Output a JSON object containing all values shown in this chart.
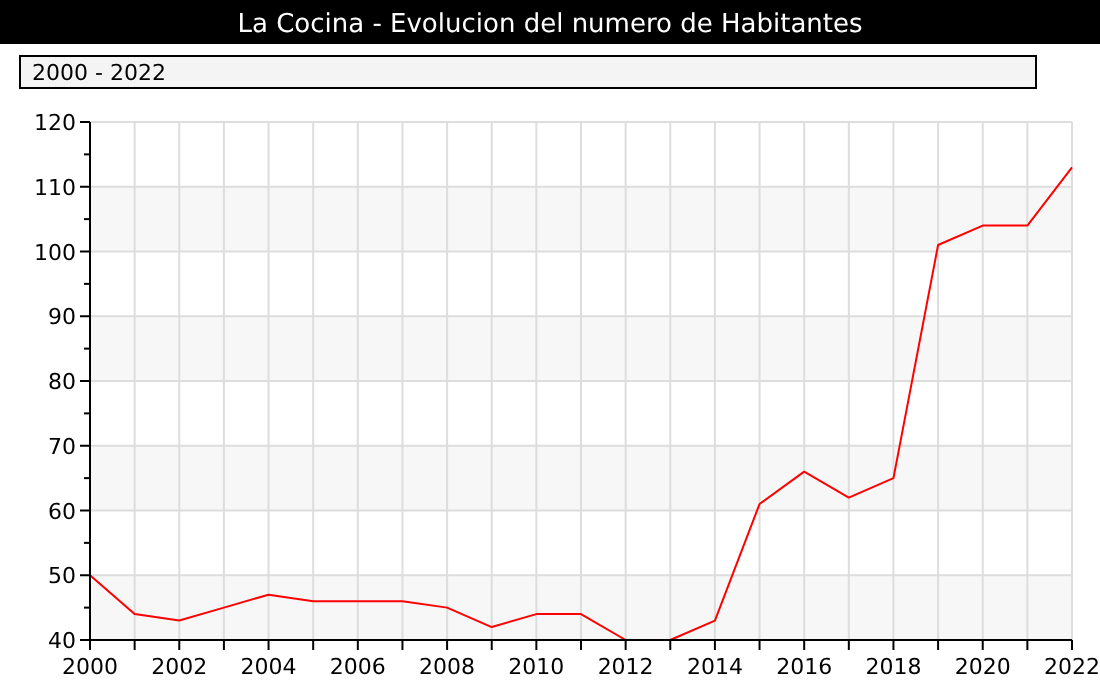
{
  "chart_data": {
    "type": "line",
    "title": "La Cocina - Evolucion del numero de Habitantes",
    "subtitle": "2000 - 2022",
    "x": [
      2000,
      2001,
      2002,
      2003,
      2004,
      2005,
      2006,
      2007,
      2008,
      2009,
      2010,
      2011,
      2012,
      2013,
      2014,
      2015,
      2016,
      2017,
      2018,
      2019,
      2020,
      2021,
      2022
    ],
    "series": [
      {
        "color": "#ff0000",
        "values": [
          50,
          44,
          43,
          45,
          47,
          46,
          46,
          46,
          45,
          42,
          44,
          44,
          40,
          40,
          43,
          61,
          66,
          62,
          65,
          101,
          104,
          104,
          113
        ]
      }
    ],
    "xlim": [
      2000,
      2022
    ],
    "xticks": [
      2000,
      {
        "value": 2001,
        "label": null
      },
      2002,
      {
        "value": 2003,
        "label": null
      },
      2004,
      {
        "value": 2005,
        "label": null
      },
      2006,
      {
        "value": 2007,
        "label": null
      },
      2008,
      {
        "value": 2009,
        "label": null
      },
      2010,
      {
        "value": 2011,
        "label": null
      },
      2012,
      {
        "value": 2013,
        "label": null
      },
      2014,
      {
        "value": 2015,
        "label": null
      },
      2016,
      {
        "value": 2017,
        "label": null
      },
      2018,
      {
        "value": 2019,
        "label": null
      },
      2020,
      {
        "value": 2021,
        "label": null
      },
      2022
    ],
    "ylim": [
      40,
      120
    ],
    "yticks": [
      40,
      {
        "value": 45,
        "label": null
      },
      50,
      {
        "value": 55,
        "label": null
      },
      60,
      {
        "value": 65,
        "label": null
      },
      70,
      {
        "value": 75,
        "label": null
      },
      80,
      {
        "value": 85,
        "label": null
      },
      90,
      {
        "value": 95,
        "label": null
      },
      100,
      {
        "value": 105,
        "label": null
      },
      110,
      {
        "value": 115,
        "label": null
      },
      120
    ],
    "grid": true,
    "marker": "none",
    "line_style": "solid"
  }
}
